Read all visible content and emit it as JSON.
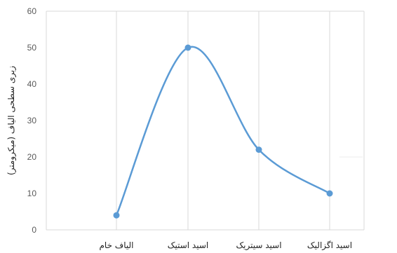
{
  "chart_data": {
    "type": "line",
    "categories": [
      "الیاف خام",
      "اسید استیک",
      "اسید سیتریک",
      "اسید اگزالیک"
    ],
    "series": [
      {
        "values": [
          4,
          50,
          22,
          10
        ]
      }
    ],
    "title": "",
    "xlabel": "",
    "ylabel": "زبری سطحی الیاف (میکرومتر)",
    "ylim": [
      0,
      60
    ],
    "yticks": [
      0,
      10,
      20,
      30,
      40,
      50,
      60
    ],
    "grid": true,
    "smooth": true,
    "legend": "none",
    "line_color": "#5b9bd5",
    "grid_color": "#d9d9d9"
  }
}
